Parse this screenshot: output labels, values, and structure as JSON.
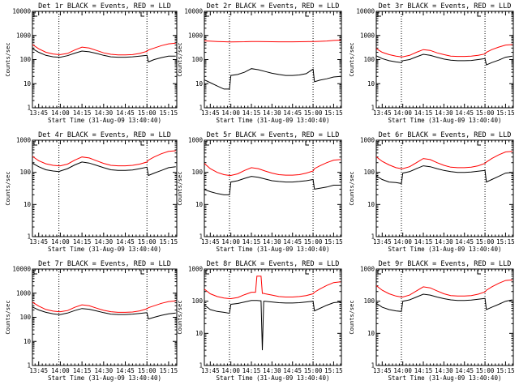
{
  "figure": {
    "colors": {
      "events": "#000000",
      "lld": "#ff0000",
      "background": "#ffffff",
      "axes": "#000000"
    }
  },
  "chart_data": [
    {
      "type": "line",
      "title": "Det 1r BLACK = Events, RED = LLD",
      "xlabel": "Start Time (31-Aug-09 13:40:40)",
      "ylabel": "Counts/sec",
      "yscale": "log",
      "ylim": [
        1,
        10000
      ],
      "xlim": [
        "13:40:40",
        "15:20:40"
      ],
      "x_ticks": [
        "13:45",
        "14:00",
        "14:15",
        "14:30",
        "14:45",
        "15:00",
        "15:15"
      ],
      "y_ticks": [
        "1",
        "10",
        "100",
        "1000",
        "10000"
      ],
      "dotted_lines_at": [
        "13:59",
        "15:00"
      ],
      "x": [
        "13:40",
        "13:45",
        "13:50",
        "13:55",
        "13:59",
        "14:00",
        "14:05",
        "14:10",
        "14:15",
        "14:20",
        "14:25",
        "14:30",
        "14:35",
        "14:40",
        "14:45",
        "14:50",
        "14:55",
        "15:00",
        "15:01",
        "15:05",
        "15:10",
        "15:15",
        "15:20"
      ],
      "series": [
        {
          "name": "Events",
          "color": "#000000",
          "values": [
            300,
            200,
            150,
            130,
            125,
            125,
            145,
            185,
            225,
            210,
            180,
            150,
            130,
            125,
            125,
            130,
            140,
            150,
            80,
            100,
            120,
            140,
            140
          ]
        },
        {
          "name": "LLD",
          "color": "#ff0000",
          "values": [
            450,
            280,
            200,
            170,
            160,
            160,
            180,
            250,
            330,
            300,
            240,
            190,
            165,
            155,
            155,
            160,
            180,
            220,
            250,
            300,
            380,
            450,
            480
          ]
        }
      ]
    },
    {
      "type": "line",
      "title": "Det 2r BLACK = Events, RED = LLD",
      "xlabel": "Start Time (31-Aug-09 13:40:40)",
      "ylabel": "Counts/sec",
      "yscale": "log",
      "ylim": [
        1,
        10000
      ],
      "xlim": [
        "13:40:40",
        "15:20:40"
      ],
      "x_ticks": [
        "13:45",
        "14:00",
        "14:15",
        "14:30",
        "14:45",
        "15:00",
        "15:15"
      ],
      "y_ticks": [
        "1",
        "10",
        "100",
        "1000",
        "10000"
      ],
      "dotted_lines_at": [
        "13:59",
        "15:00"
      ],
      "x": [
        "13:40",
        "13:45",
        "13:50",
        "13:55",
        "13:59",
        "14:00",
        "14:05",
        "14:10",
        "14:15",
        "14:20",
        "14:25",
        "14:30",
        "14:35",
        "14:40",
        "14:45",
        "14:50",
        "14:55",
        "15:00",
        "15:01",
        "15:05",
        "15:10",
        "15:15",
        "15:20"
      ],
      "series": [
        {
          "name": "Events",
          "color": "#000000",
          "values": [
            15,
            11,
            8,
            6,
            6,
            22,
            24,
            30,
            42,
            38,
            32,
            27,
            24,
            22,
            22,
            23,
            26,
            40,
            12,
            14,
            16,
            19,
            20
          ]
        },
        {
          "name": "LLD",
          "color": "#ff0000",
          "values": [
            600,
            580,
            560,
            550,
            540,
            540,
            545,
            550,
            560,
            560,
            555,
            550,
            545,
            545,
            545,
            550,
            555,
            560,
            560,
            570,
            590,
            620,
            640
          ]
        }
      ]
    },
    {
      "type": "line",
      "title": "Det 3r BLACK = Events, RED = LLD",
      "xlabel": "Start Time (31-Aug-09 13:40:40)",
      "ylabel": "Counts/sec",
      "yscale": "log",
      "ylim": [
        1,
        10000
      ],
      "xlim": [
        "13:40:40",
        "15:20:40"
      ],
      "x_ticks": [
        "13:45",
        "14:00",
        "14:15",
        "14:30",
        "14:45",
        "15:00",
        "15:15"
      ],
      "y_ticks": [
        "1",
        "10",
        "100",
        "1000",
        "10000"
      ],
      "dotted_lines_at": [
        "13:59",
        "15:00"
      ],
      "x": [
        "13:40",
        "13:45",
        "13:50",
        "13:55",
        "13:59",
        "14:00",
        "14:05",
        "14:10",
        "14:15",
        "14:20",
        "14:25",
        "14:30",
        "14:35",
        "14:40",
        "14:45",
        "14:50",
        "14:55",
        "15:00",
        "15:01",
        "15:05",
        "15:10",
        "15:15",
        "15:20"
      ],
      "series": [
        {
          "name": "Events",
          "color": "#000000",
          "values": [
            150,
            110,
            90,
            80,
            75,
            90,
            100,
            130,
            165,
            150,
            125,
            105,
            95,
            90,
            90,
            92,
            100,
            110,
            60,
            75,
            95,
            125,
            140
          ]
        },
        {
          "name": "LLD",
          "color": "#ff0000",
          "values": [
            300,
            200,
            160,
            140,
            130,
            130,
            150,
            200,
            260,
            240,
            190,
            160,
            140,
            135,
            135,
            140,
            150,
            170,
            200,
            260,
            330,
            400,
            420
          ]
        }
      ]
    },
    {
      "type": "line",
      "title": "Det 4r BLACK = Events, RED = LLD",
      "xlabel": "Start Time (31-Aug-09 13:40:40)",
      "ylabel": "Counts/sec",
      "yscale": "log",
      "ylim": [
        1,
        1000
      ],
      "xlim": [
        "13:40:40",
        "15:20:40"
      ],
      "x_ticks": [
        "13:45",
        "14:00",
        "14:15",
        "14:30",
        "14:45",
        "15:00",
        "15:15"
      ],
      "y_ticks": [
        "1",
        "10",
        "100",
        "1000"
      ],
      "dotted_lines_at": [
        "13:59",
        "15:00"
      ],
      "x": [
        "13:40",
        "13:45",
        "13:50",
        "13:55",
        "13:59",
        "14:00",
        "14:05",
        "14:10",
        "14:15",
        "14:20",
        "14:25",
        "14:30",
        "14:35",
        "14:40",
        "14:45",
        "14:50",
        "14:55",
        "15:00",
        "15:01",
        "15:05",
        "15:10",
        "15:15",
        "15:20"
      ],
      "series": [
        {
          "name": "Events",
          "color": "#000000",
          "values": [
            200,
            150,
            120,
            110,
            105,
            110,
            130,
            170,
            210,
            195,
            165,
            140,
            120,
            115,
            115,
            118,
            130,
            145,
            80,
            95,
            115,
            140,
            150
          ]
        },
        {
          "name": "LLD",
          "color": "#ff0000",
          "values": [
            330,
            230,
            185,
            165,
            160,
            160,
            180,
            240,
            300,
            280,
            230,
            190,
            165,
            160,
            160,
            165,
            180,
            210,
            240,
            300,
            380,
            450,
            470
          ]
        }
      ]
    },
    {
      "type": "line",
      "title": "Det 5r BLACK = Events, RED = LLD",
      "xlabel": "Start Time (31-Aug-09 13:40:40)",
      "ylabel": "Counts/sec",
      "yscale": "log",
      "ylim": [
        1,
        1000
      ],
      "xlim": [
        "13:40:40",
        "15:20:40"
      ],
      "x_ticks": [
        "13:45",
        "14:00",
        "14:15",
        "14:30",
        "14:45",
        "15:00",
        "15:15"
      ],
      "y_ticks": [
        "1",
        "10",
        "100",
        "1000"
      ],
      "dotted_lines_at": [
        "13:59",
        "15:00"
      ],
      "x": [
        "13:40",
        "13:45",
        "13:50",
        "13:55",
        "13:59",
        "14:00",
        "14:05",
        "14:10",
        "14:15",
        "14:20",
        "14:25",
        "14:30",
        "14:35",
        "14:40",
        "14:45",
        "14:50",
        "14:55",
        "15:00",
        "15:01",
        "15:05",
        "15:10",
        "15:15",
        "15:20"
      ],
      "series": [
        {
          "name": "Events",
          "color": "#000000",
          "values": [
            30,
            25,
            22,
            20,
            20,
            50,
            55,
            65,
            75,
            70,
            62,
            55,
            52,
            50,
            50,
            52,
            55,
            60,
            30,
            32,
            35,
            40,
            40
          ]
        },
        {
          "name": "LLD",
          "color": "#ff0000",
          "values": [
            200,
            130,
            100,
            85,
            80,
            80,
            90,
            115,
            140,
            130,
            110,
            95,
            85,
            82,
            82,
            85,
            95,
            110,
            130,
            160,
            200,
            240,
            250
          ]
        }
      ]
    },
    {
      "type": "line",
      "title": "Det 6r BLACK = Events, RED = LLD",
      "xlabel": "Start Time (31-Aug-09 13:40:40)",
      "ylabel": "Counts/sec",
      "yscale": "log",
      "ylim": [
        1,
        1000
      ],
      "xlim": [
        "13:40:40",
        "15:20:40"
      ],
      "x_ticks": [
        "13:45",
        "14:00",
        "14:15",
        "14:30",
        "14:45",
        "15:00",
        "15:15"
      ],
      "y_ticks": [
        "1",
        "10",
        "100",
        "1000"
      ],
      "dotted_lines_at": [
        "13:59",
        "15:00"
      ],
      "x": [
        "13:40",
        "13:45",
        "13:50",
        "13:55",
        "13:59",
        "14:00",
        "14:05",
        "14:10",
        "14:15",
        "14:20",
        "14:25",
        "14:30",
        "14:35",
        "14:40",
        "14:45",
        "14:50",
        "14:55",
        "15:00",
        "15:01",
        "15:05",
        "15:10",
        "15:15",
        "15:20"
      ],
      "series": [
        {
          "name": "Events",
          "color": "#000000",
          "values": [
            80,
            60,
            50,
            48,
            45,
            95,
            105,
            130,
            160,
            150,
            130,
            115,
            105,
            100,
            100,
            102,
            108,
            115,
            50,
            60,
            75,
            95,
            100
          ]
        },
        {
          "name": "LLD",
          "color": "#ff0000",
          "values": [
            320,
            220,
            170,
            140,
            130,
            130,
            150,
            200,
            270,
            250,
            200,
            165,
            145,
            140,
            140,
            145,
            160,
            190,
            210,
            270,
            350,
            430,
            450
          ]
        }
      ]
    },
    {
      "type": "line",
      "title": "Det 7r BLACK = Events, RED = LLD",
      "xlabel": "Start Time (31-Aug-09 13:40:40)",
      "ylabel": "Counts/sec",
      "yscale": "log",
      "ylim": [
        1,
        10000
      ],
      "xlim": [
        "13:40:40",
        "15:20:40"
      ],
      "x_ticks": [
        "13:45",
        "14:00",
        "14:15",
        "14:30",
        "14:45",
        "15:00",
        "15:15"
      ],
      "y_ticks": [
        "1",
        "10",
        "100",
        "1000",
        "10000"
      ],
      "dotted_lines_at": [
        "13:59",
        "15:00"
      ],
      "x": [
        "13:40",
        "13:45",
        "13:50",
        "13:55",
        "13:59",
        "14:00",
        "14:05",
        "14:10",
        "14:15",
        "14:20",
        "14:25",
        "14:30",
        "14:35",
        "14:40",
        "14:45",
        "14:50",
        "14:55",
        "15:00",
        "15:01",
        "15:05",
        "15:10",
        "15:15",
        "15:20"
      ],
      "series": [
        {
          "name": "Events",
          "color": "#000000",
          "values": [
            280,
            200,
            160,
            140,
            130,
            130,
            150,
            190,
            230,
            215,
            185,
            155,
            135,
            130,
            130,
            135,
            145,
            155,
            85,
            100,
            120,
            140,
            150
          ]
        },
        {
          "name": "LLD",
          "color": "#ff0000",
          "values": [
            450,
            290,
            210,
            180,
            170,
            170,
            190,
            260,
            330,
            300,
            240,
            195,
            170,
            160,
            160,
            165,
            185,
            225,
            250,
            300,
            380,
            450,
            480
          ]
        }
      ]
    },
    {
      "type": "line",
      "title": "Det 8r BLACK = Events, RED = LLD",
      "xlabel": "Start Time (31-Aug-09 13:40:40)",
      "ylabel": "Counts/sec",
      "yscale": "log",
      "ylim": [
        1,
        1000
      ],
      "xlim": [
        "13:40:40",
        "15:20:40"
      ],
      "x_ticks": [
        "13:45",
        "14:00",
        "14:15",
        "14:30",
        "14:45",
        "15:00",
        "15:15"
      ],
      "y_ticks": [
        "1",
        "10",
        "100",
        "1000"
      ],
      "dotted_lines_at": [
        "13:59",
        "15:00"
      ],
      "x": [
        "13:40",
        "13:45",
        "13:50",
        "13:55",
        "13:59",
        "14:00",
        "14:05",
        "14:10",
        "14:15",
        "14:18",
        "14:19",
        "14:22",
        "14:23",
        "14:24",
        "14:25",
        "14:30",
        "14:35",
        "14:40",
        "14:45",
        "14:50",
        "14:55",
        "15:00",
        "15:01",
        "15:05",
        "15:10",
        "15:15",
        "15:20"
      ],
      "series": [
        {
          "name": "Events",
          "color": "#000000",
          "values": [
            80,
            55,
            48,
            45,
            42,
            80,
            85,
            95,
            105,
            105,
            105,
            103,
            3,
            100,
            100,
            95,
            90,
            88,
            88,
            90,
            95,
            100,
            50,
            60,
            75,
            90,
            95
          ]
        },
        {
          "name": "LLD",
          "color": "#ff0000",
          "values": [
            250,
            170,
            140,
            125,
            120,
            120,
            130,
            160,
            190,
            190,
            600,
            600,
            175,
            175,
            170,
            155,
            140,
            135,
            135,
            140,
            150,
            170,
            190,
            240,
            310,
            380,
            400
          ]
        }
      ]
    },
    {
      "type": "line",
      "title": "Det 9r BLACK = Events, RED = LLD",
      "xlabel": "Start Time (31-Aug-09 13:40:40)",
      "ylabel": "Counts/sec",
      "yscale": "log",
      "ylim": [
        1,
        1000
      ],
      "xlim": [
        "13:40:40",
        "15:20:40"
      ],
      "x_ticks": [
        "13:45",
        "14:00",
        "14:15",
        "14:30",
        "14:45",
        "15:00",
        "15:15"
      ],
      "y_ticks": [
        "1",
        "10",
        "100",
        "1000"
      ],
      "dotted_lines_at": [
        "13:59",
        "15:00"
      ],
      "x": [
        "13:40",
        "13:45",
        "13:50",
        "13:55",
        "13:59",
        "14:00",
        "14:05",
        "14:10",
        "14:15",
        "14:20",
        "14:25",
        "14:30",
        "14:35",
        "14:40",
        "14:45",
        "14:50",
        "14:55",
        "15:00",
        "15:01",
        "15:05",
        "15:10",
        "15:15",
        "15:20"
      ],
      "series": [
        {
          "name": "Events",
          "color": "#000000",
          "values": [
            90,
            65,
            55,
            50,
            48,
            100,
            110,
            135,
            165,
            155,
            135,
            120,
            110,
            105,
            105,
            108,
            115,
            122,
            55,
            65,
            80,
            100,
            110
          ]
        },
        {
          "name": "LLD",
          "color": "#ff0000",
          "values": [
            320,
            220,
            170,
            145,
            135,
            135,
            155,
            210,
            280,
            260,
            210,
            170,
            150,
            145,
            145,
            150,
            165,
            195,
            220,
            280,
            360,
            440,
            460
          ]
        }
      ]
    }
  ]
}
